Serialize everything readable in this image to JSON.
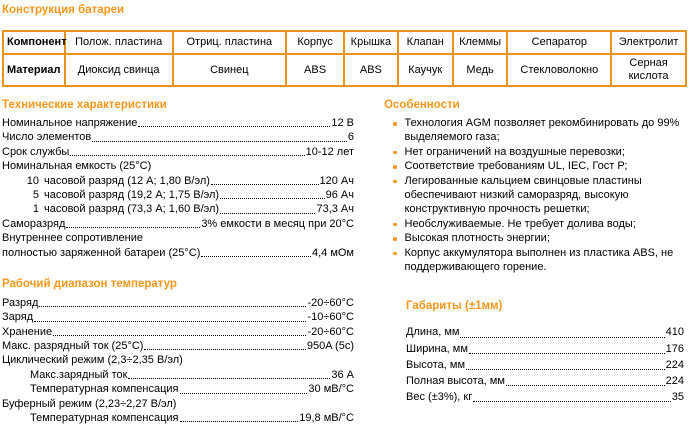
{
  "colors": {
    "accent": "#F5971B",
    "table_border": "#E8941C",
    "text": "#000000",
    "background": "#FFFFFF"
  },
  "construction": {
    "heading": "Конструкция батареи",
    "table": {
      "header": [
        "Компонент",
        "Полож. пластина",
        "Отриц. пластина",
        "Корпус",
        "Крышка",
        "Клапан",
        "Клеммы",
        "Сепаратор",
        "Электролит"
      ],
      "row": [
        "Материал",
        "Диоксид свинца",
        "Свинец",
        "ABS",
        "ABS",
        "Каучук",
        "Медь",
        "Стекловолокно",
        "Серная кислота"
      ]
    }
  },
  "tech_specs": {
    "heading": "Технические характеристики",
    "rows": [
      {
        "label": "Номинальное напряжение",
        "value": "12 В"
      },
      {
        "label": "Число элементов",
        "value": "6"
      },
      {
        "label": "Срок службы",
        "value": "10-12 лет"
      },
      {
        "label": "Номинальная емкость (25°С)",
        "value": ""
      },
      {
        "num": "10",
        "label": "часовой разряд  (12 А; 1,80 В/эл)",
        "value": "120 Ач"
      },
      {
        "num": "5",
        "label": "часовой разряд  (19,2 А; 1,75 В/эл)",
        "value": "96 Ач"
      },
      {
        "num": "1",
        "label": "часовой разряд  (73,3 А; 1,60 В/эл)",
        "value": "73,3 Ач"
      },
      {
        "label": "Саморазряд",
        "value": "3% емкости в месяц при 20°С"
      },
      {
        "label": "Внутреннее сопротивление",
        "value": ""
      },
      {
        "label": "полностью заряженной батареи (25°С)",
        "value": "4,4 мОм"
      }
    ]
  },
  "temp_range": {
    "heading": "Рабочий диапазон температур",
    "rows": [
      {
        "label": "Разряд",
        "value": "-20÷60°С"
      },
      {
        "label": "Заряд",
        "value": "-10÷60°С"
      },
      {
        "label": "Хранение",
        "value": "-20÷60°С"
      },
      {
        "label": "Макс. разрядный ток (25°С)",
        "value": "950A (5c)"
      },
      {
        "label": "Циклический режим (2,3÷2,35 В/эл)",
        "value": ""
      },
      {
        "label": "Макс.зарядный ток",
        "value": "36 А",
        "indent": 1
      },
      {
        "label": "Температурная компенсация",
        "value": "30 мВ/°С",
        "indent": 1
      },
      {
        "label": "Буферный режим (2,23÷2,27 В/эл)",
        "value": ""
      },
      {
        "label": "Температурная компенсация",
        "value": "19,8 мВ/°С",
        "indent": 1
      }
    ]
  },
  "features": {
    "heading": "Особенности",
    "items": [
      "Технология AGM позволяет рекомбинировать до 99% выделяемого газа;",
      "Нет ограничений на воздушные перевозки;",
      "Соответствие требованиям UL, IEC, Гост Р;",
      "Легированные кальцием свинцовые пластины обеспечивают низкий саморазряд, высокую конструктивную прочность решетки;",
      "Необслуживаемые. Не требует долива воды;",
      "Высокая плотность энергии;",
      "Корпус аккумулятора выполнен из пластика ABS, не поддерживающего горение."
    ]
  },
  "dimensions": {
    "heading": "Габариты (±1мм)",
    "rows": [
      {
        "label": "Длина, мм",
        "value": "410"
      },
      {
        "label": "Ширина, мм",
        "value": "176"
      },
      {
        "label": "Высота, мм",
        "value": "224"
      },
      {
        "label": "Полная высота, мм",
        "value": "224"
      },
      {
        "label": "Вес (±3%), кг",
        "value": "35"
      }
    ]
  }
}
